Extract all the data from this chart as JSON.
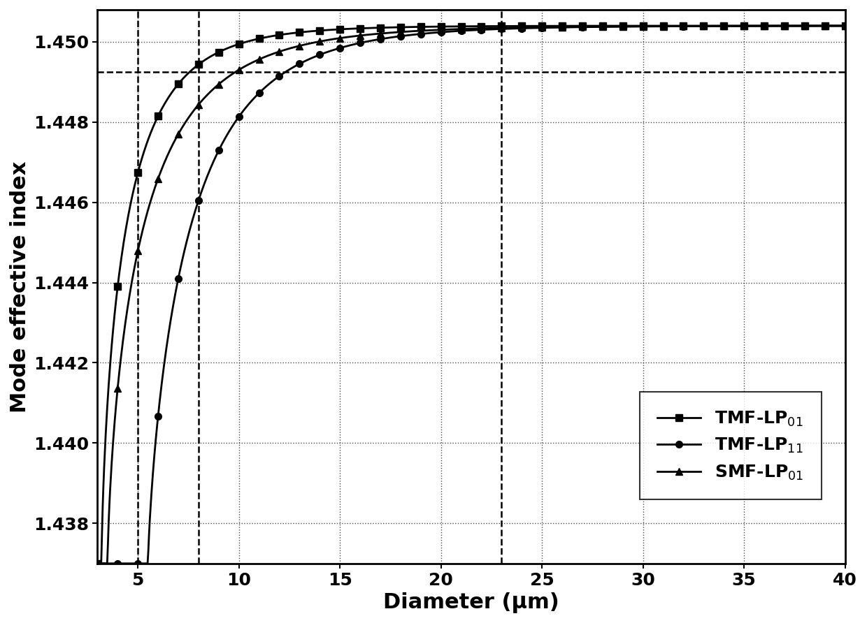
{
  "title": "",
  "xlabel": "Diameter (μm)",
  "ylabel": "Mode effective index",
  "xlim": [
    3,
    40
  ],
  "ylim": [
    1.437,
    1.4508
  ],
  "xticks": [
    5,
    10,
    15,
    20,
    25,
    30,
    35,
    40
  ],
  "yticks": [
    1.438,
    1.44,
    1.442,
    1.444,
    1.446,
    1.448,
    1.45
  ],
  "n_core": 1.4504,
  "n_clad": 1.437,
  "hline_y": 1.44925,
  "vline_x1": 5.0,
  "vline_x2": 8.0,
  "vline_x3": 23.0,
  "legend_labels": [
    "TMF-LP$_{01}$",
    "TMF-LP$_{11}$",
    "SMF-LP$_{01}$"
  ],
  "markers": [
    "s",
    "o",
    "^"
  ],
  "linewidth": 2.0,
  "markersize": 7,
  "fontsize_label": 22,
  "fontsize_tick": 18,
  "fontsize_legend": 18,
  "tmf_lp01_params": {
    "d0": 3.2,
    "k": 0.85,
    "power": 0.72
  },
  "tmf_lp11_params": {
    "d0": 5.5,
    "k": 0.55,
    "power": 0.78
  },
  "smf_lp01_params": {
    "d0": 3.5,
    "k": 0.65,
    "power": 0.72
  }
}
